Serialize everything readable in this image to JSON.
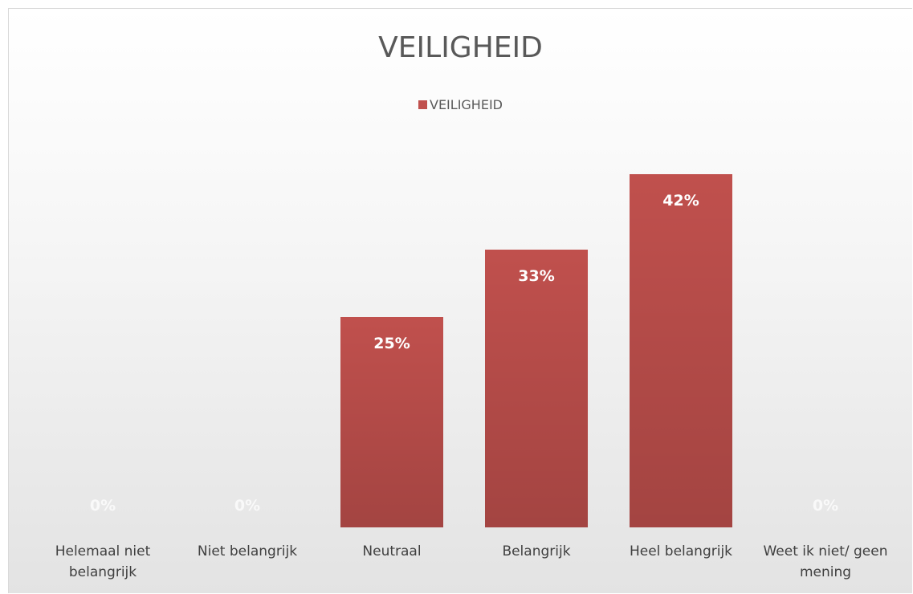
{
  "chart_data": {
    "type": "bar",
    "title": "VEILIGHEID",
    "categories": [
      "Helemaal niet belangrijk",
      "Niet belangrijk",
      "Neutraal",
      "Belangrijk",
      "Heel belangrijk",
      "Weet ik niet/ geen mening"
    ],
    "series": [
      {
        "name": "VEILIGHEID",
        "color": "#c0504d",
        "values": [
          0,
          0,
          25,
          33,
          42,
          0
        ],
        "value_labels": [
          "0%",
          "0%",
          "25%",
          "33%",
          "42%",
          "0%"
        ]
      }
    ],
    "legend": "top"
  }
}
